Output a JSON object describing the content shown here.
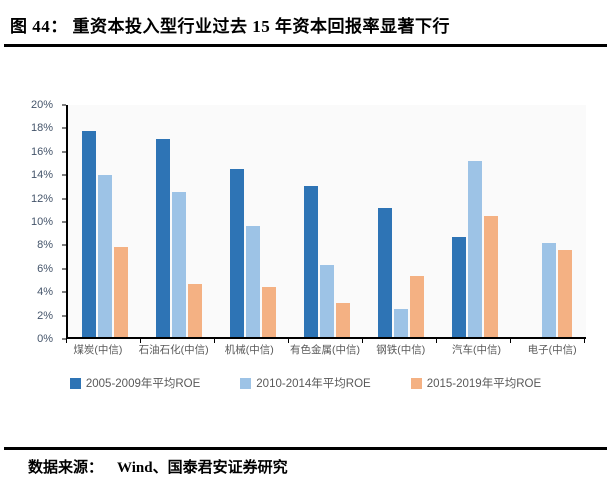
{
  "header": {
    "title": "图 44： 重资本投入型行业过去 15 年资本回报率显著下行"
  },
  "footer": {
    "source_label": "数据来源：",
    "source_text": "Wind、国泰君安证券研究"
  },
  "colors": {
    "series_dark_blue": "#2E74B5",
    "series_light_blue": "#9DC3E6",
    "series_orange": "#F4B183",
    "axis_line": "#000000",
    "ytick_text": "#44546A",
    "xtick_text": "#595959",
    "legend_text": "#595959",
    "plot_background": "#FAFAFA",
    "divider": "#000000"
  },
  "chart_data": {
    "type": "bar",
    "title": "",
    "xlabel": "",
    "ylabel": "",
    "categories": [
      "煤炭(中信)",
      "石油石化(中信)",
      "机械(中信)",
      "有色金属(中信)",
      "钢铁(中信)",
      "汽车(中信)",
      "电子(中信)"
    ],
    "series": [
      {
        "name": "2005-2009年平均ROE",
        "color": "#2E74B5",
        "values": [
          17.8,
          17.1,
          14.5,
          13.0,
          11.1,
          8.6,
          0
        ]
      },
      {
        "name": "2010-2014年平均ROE",
        "color": "#9DC3E6",
        "values": [
          14.0,
          12.5,
          9.6,
          6.2,
          2.4,
          15.2,
          8.1
        ]
      },
      {
        "name": "2015-2019年平均ROE",
        "color": "#F4B183",
        "values": [
          7.8,
          4.6,
          4.3,
          2.9,
          5.3,
          10.4,
          7.5
        ]
      }
    ],
    "ylim": [
      0,
      20
    ],
    "ytick_step": 2,
    "yticks": [
      "0%",
      "2%",
      "4%",
      "6%",
      "8%",
      "10%",
      "12%",
      "14%",
      "16%",
      "18%",
      "20%"
    ],
    "grid": false,
    "legend_position": "bottom"
  }
}
